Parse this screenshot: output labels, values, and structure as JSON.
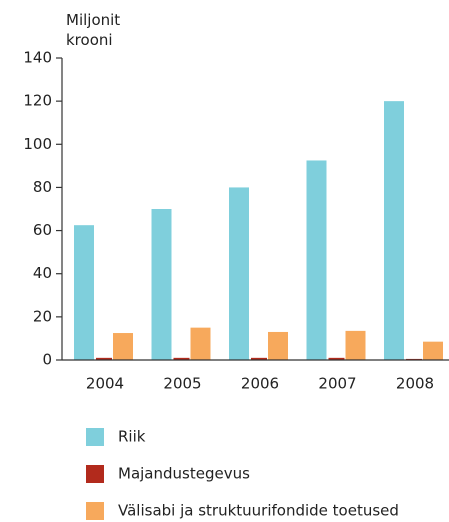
{
  "chart_data": {
    "type": "bar",
    "ylabel": "Miljonit krooni",
    "categories": [
      "2004",
      "2005",
      "2006",
      "2007",
      "2008"
    ],
    "series": [
      {
        "name": "Riik",
        "color": "#7fcfdc",
        "values": [
          62.5,
          70,
          80,
          92.5,
          120
        ]
      },
      {
        "name": "Majandustegevus",
        "color": "#b22a1c",
        "values": [
          1,
          1,
          1,
          1,
          0.5
        ]
      },
      {
        "name": "Välisabi ja struktuurifondide toetused",
        "color": "#f7a95c",
        "values": [
          12.5,
          15,
          13,
          13.5,
          8.5
        ]
      }
    ],
    "ylim": [
      0,
      140
    ],
    "yticks": [
      0,
      20,
      40,
      60,
      80,
      100,
      120,
      140
    ],
    "grid": false,
    "legend": "bottom"
  }
}
